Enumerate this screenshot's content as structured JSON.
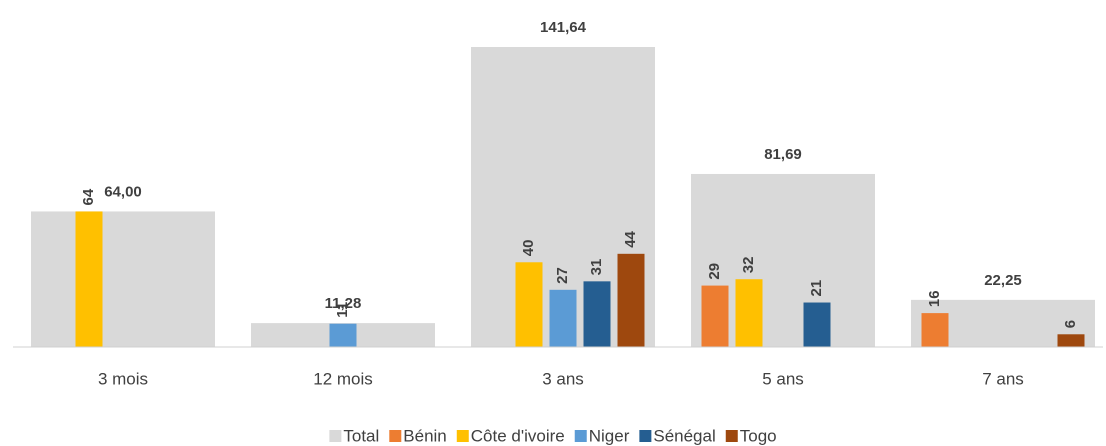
{
  "chart_data": {
    "type": "bar",
    "categories": [
      "3 mois",
      "12 mois",
      "3 ans",
      "5 ans",
      "7 ans"
    ],
    "series": [
      {
        "name": "Total",
        "color": "#d9d9d9",
        "values": [
          64.0,
          11.28,
          141.64,
          81.69,
          22.25
        ],
        "value_labels": [
          "64,00",
          "11,28",
          "141,64",
          "81,69",
          "22,25"
        ]
      },
      {
        "name": "Bénin",
        "color": "#ed7d31",
        "values": [
          null,
          null,
          null,
          29,
          16
        ]
      },
      {
        "name": "Côte d'ivoire",
        "color": "#ffc000",
        "values": [
          64,
          null,
          40,
          32,
          null
        ]
      },
      {
        "name": "Niger",
        "color": "#5b9bd5",
        "values": [
          null,
          11,
          27,
          null,
          null
        ]
      },
      {
        "name": "Sénégal",
        "color": "#255e91",
        "values": [
          null,
          null,
          31,
          21,
          null
        ]
      },
      {
        "name": "Togo",
        "color": "#9e480e",
        "values": [
          null,
          null,
          44,
          null,
          6
        ]
      }
    ],
    "legend": "bottom"
  }
}
